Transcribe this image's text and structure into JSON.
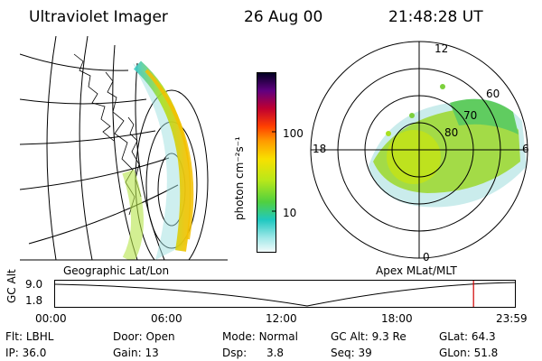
{
  "header": {
    "instrument": "Ultraviolet Imager",
    "date": "26 Aug 00",
    "time": "21:48:28 UT"
  },
  "left_panel": {
    "label": "Geographic Lat/Lon"
  },
  "right_panel": {
    "label": "Apex MLat/MLT",
    "mlt_labels": {
      "top": "12",
      "left": "18",
      "right": "6",
      "bottom": "0"
    },
    "lat_labels": [
      "60",
      "70",
      "80"
    ]
  },
  "colorbar": {
    "unit_label": "photon cm⁻²s⁻¹",
    "tick_labels": [
      "100",
      "10"
    ],
    "scale": "log"
  },
  "timeline": {
    "ylabel": "GC Alt",
    "y_ticks": [
      "9.0",
      "1.8"
    ],
    "x_ticks": [
      "00:00",
      "06:00",
      "12:00",
      "18:00",
      "23:59"
    ],
    "current_time_fraction": 0.91
  },
  "info": {
    "flt_label": "Flt:",
    "flt_value": "LBHL",
    "ip_label": "IP:",
    "ip_value": "36.0",
    "door_label": "Door:",
    "door_value": "Open",
    "gain_label": "Gain:",
    "gain_value": "13",
    "mode_label": "Mode:",
    "mode_value": "Normal",
    "dsp_label": "Dsp:",
    "dsp_value": "3.8",
    "gcalt_label": "GC Alt:",
    "gcalt_value": "9.3 Re",
    "seq_label": "Seq:",
    "seq_value": "39",
    "glat_label": "GLat:",
    "glat_value": "64.3",
    "glon_label": "GLon:",
    "glon_value": "51.8"
  },
  "colors": {
    "marker": "#d00000"
  }
}
